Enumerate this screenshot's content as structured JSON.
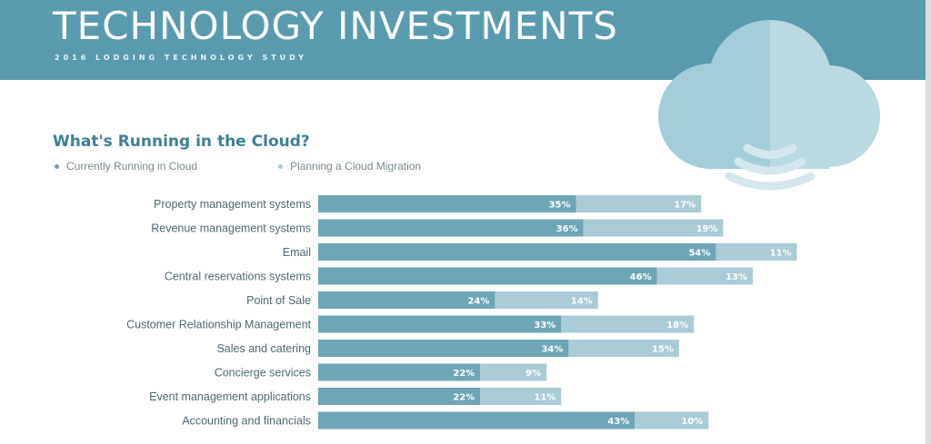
{
  "banner": {
    "title": "TECHNOLOGY INVESTMENTS",
    "subtitle": "2016 LODGING TECHNOLOGY STUDY"
  },
  "icons": {
    "cloud": "cloud-wifi-icon"
  },
  "colors": {
    "banner": "#5a9aae",
    "current": "#6ea5b7",
    "planned": "#a9cbd6",
    "title": "#3f7f95"
  },
  "chart_data": {
    "type": "bar",
    "orientation": "horizontal",
    "stacked": true,
    "title": "What's Running in the Cloud?",
    "legend_position": "top-left",
    "value_suffix": "%",
    "categories": [
      "Property management systems",
      "Revenue management systems",
      "Email",
      "Central reservations systems",
      "Point of Sale",
      "Customer Relationship Management",
      "Sales and catering",
      "Concierge services",
      "Event management applications",
      "Accounting and financials"
    ],
    "series": [
      {
        "name": "Currently Running in Cloud",
        "values": [
          35,
          36,
          54,
          46,
          24,
          33,
          34,
          22,
          22,
          43
        ]
      },
      {
        "name": "Planning a Cloud Migration",
        "values": [
          17,
          19,
          11,
          13,
          14,
          18,
          15,
          9,
          11,
          10
        ]
      }
    ]
  }
}
